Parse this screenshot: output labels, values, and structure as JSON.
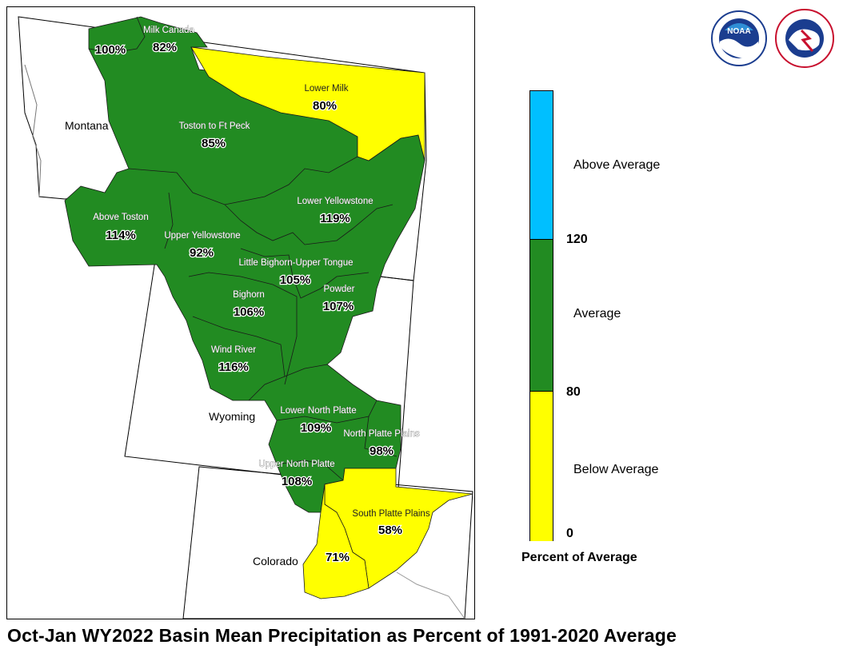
{
  "title": "Oct-Jan WY2022 Basin Mean Precipitation as Percent of 1991-2020 Average",
  "legend": {
    "caption": "Percent of Average",
    "ticks": [
      "120",
      "80",
      "0"
    ],
    "categories": [
      {
        "label": "Above Average",
        "color": "#00bfff"
      },
      {
        "label": "Average",
        "color": "#228b22"
      },
      {
        "label": "Below Average",
        "color": "#ffff00"
      }
    ]
  },
  "states": {
    "montana": "Montana",
    "wyoming": "Wyoming",
    "colorado": "Colorado"
  },
  "basins": [
    {
      "name": "Milk Canada",
      "pct": "82%",
      "category": "Average"
    },
    {
      "name": "",
      "pct": "100%",
      "category": "Average"
    },
    {
      "name": "Lower Milk",
      "pct": "80%",
      "category": "Below Average"
    },
    {
      "name": "Toston to Ft Peck",
      "pct": "85%",
      "category": "Average"
    },
    {
      "name": "Above Toston",
      "pct": "114%",
      "category": "Average"
    },
    {
      "name": "Lower Yellowstone",
      "pct": "119%",
      "category": "Average"
    },
    {
      "name": "Upper Yellowstone",
      "pct": "92%",
      "category": "Average"
    },
    {
      "name": "Little Bighorn-Upper Tongue",
      "pct": "105%",
      "category": "Average"
    },
    {
      "name": "Bighorn",
      "pct": "106%",
      "category": "Average"
    },
    {
      "name": "Powder",
      "pct": "107%",
      "category": "Average"
    },
    {
      "name": "Wind River",
      "pct": "116%",
      "category": "Average"
    },
    {
      "name": "Lower North Platte",
      "pct": "109%",
      "category": "Average"
    },
    {
      "name": "North Platte Plains",
      "pct": "98%",
      "category": "Average"
    },
    {
      "name": "Upper North Platte",
      "pct": "108%",
      "category": "Average"
    },
    {
      "name": "South Platte Plains",
      "pct": "58%",
      "category": "Below Average"
    },
    {
      "name": "",
      "pct": "71%",
      "category": "Below Average"
    }
  ],
  "colors": {
    "above": "#00bfff",
    "average": "#228b22",
    "below": "#ffff00"
  },
  "logos": [
    "noaa-logo",
    "national-weather-service-logo"
  ]
}
